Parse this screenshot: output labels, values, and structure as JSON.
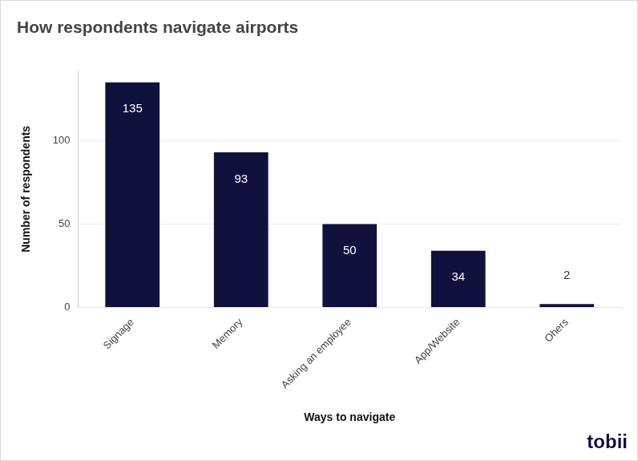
{
  "chart_data": {
    "type": "bar",
    "title": "How respondents navigate airports",
    "xlabel": "Ways to navigate",
    "ylabel": "Number of respondents",
    "categories": [
      "Signage",
      "Memory",
      "Asking an employee",
      "App/Website",
      "Ohers"
    ],
    "values": [
      135,
      93,
      50,
      34,
      2
    ],
    "color": "#11113e",
    "ylim": [
      0,
      142
    ],
    "yticks": [
      0,
      50,
      100
    ],
    "grid": true,
    "data_labels": true,
    "annotations": [
      "tobii"
    ]
  }
}
